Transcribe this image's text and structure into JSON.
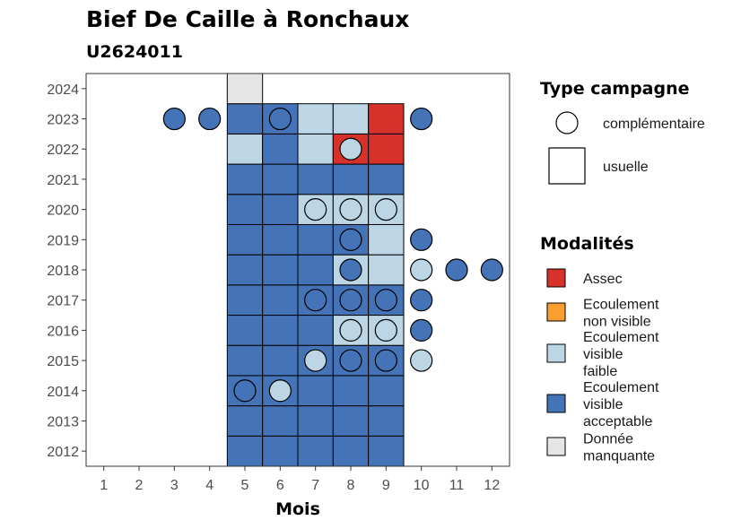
{
  "chart_data": {
    "type": "heatmap",
    "title": "Bief De Caille à Ronchaux",
    "subtitle": "U2624011",
    "xlabel": "Mois",
    "ylabel": "",
    "x_ticks": [
      "1",
      "2",
      "3",
      "4",
      "5",
      "6",
      "7",
      "8",
      "9",
      "10",
      "11",
      "12"
    ],
    "y_ticks": [
      "2012",
      "2013",
      "2014",
      "2015",
      "2016",
      "2017",
      "2018",
      "2019",
      "2020",
      "2021",
      "2022",
      "2023",
      "2024"
    ],
    "xlim": [
      0.5,
      12.5
    ],
    "ylim": [
      2011.5,
      2024.5
    ],
    "grid": false,
    "legend_placement": "right",
    "legend_type": {
      "title": "Type campagne",
      "items": [
        {
          "label": "complémentaire",
          "shape": "circle"
        },
        {
          "label": "usuelle",
          "shape": "square"
        }
      ]
    },
    "legend_modalites": {
      "title": "Modalités",
      "items": [
        {
          "key": "assec",
          "label_lines": [
            "Assec"
          ],
          "color": "#D7312C"
        },
        {
          "key": "nonvisible",
          "label_lines": [
            "Ecoulement",
            "non visible"
          ],
          "color": "#FA9E2F"
        },
        {
          "key": "faible",
          "label_lines": [
            "Ecoulement",
            "visible",
            "faible"
          ],
          "color": "#BCD6E6"
        },
        {
          "key": "acceptable",
          "label_lines": [
            "Ecoulement",
            "visible",
            "acceptable"
          ],
          "color": "#4474B7"
        },
        {
          "key": "manquante",
          "label_lines": [
            "Donnée",
            "manquante"
          ],
          "color": "#E5E5E5"
        }
      ]
    },
    "squares": [
      {
        "year": 2012,
        "month": 5,
        "mod": "acceptable"
      },
      {
        "year": 2012,
        "month": 6,
        "mod": "acceptable"
      },
      {
        "year": 2012,
        "month": 7,
        "mod": "acceptable"
      },
      {
        "year": 2012,
        "month": 8,
        "mod": "acceptable"
      },
      {
        "year": 2012,
        "month": 9,
        "mod": "acceptable"
      },
      {
        "year": 2013,
        "month": 5,
        "mod": "acceptable"
      },
      {
        "year": 2013,
        "month": 6,
        "mod": "acceptable"
      },
      {
        "year": 2013,
        "month": 7,
        "mod": "acceptable"
      },
      {
        "year": 2013,
        "month": 8,
        "mod": "acceptable"
      },
      {
        "year": 2013,
        "month": 9,
        "mod": "acceptable"
      },
      {
        "year": 2014,
        "month": 5,
        "mod": "acceptable"
      },
      {
        "year": 2014,
        "month": 6,
        "mod": "acceptable"
      },
      {
        "year": 2014,
        "month": 7,
        "mod": "acceptable"
      },
      {
        "year": 2014,
        "month": 8,
        "mod": "acceptable"
      },
      {
        "year": 2014,
        "month": 9,
        "mod": "acceptable"
      },
      {
        "year": 2015,
        "month": 5,
        "mod": "acceptable"
      },
      {
        "year": 2015,
        "month": 6,
        "mod": "acceptable"
      },
      {
        "year": 2015,
        "month": 7,
        "mod": "acceptable"
      },
      {
        "year": 2015,
        "month": 8,
        "mod": "acceptable"
      },
      {
        "year": 2015,
        "month": 9,
        "mod": "acceptable"
      },
      {
        "year": 2016,
        "month": 5,
        "mod": "acceptable"
      },
      {
        "year": 2016,
        "month": 6,
        "mod": "acceptable"
      },
      {
        "year": 2016,
        "month": 7,
        "mod": "acceptable"
      },
      {
        "year": 2016,
        "month": 8,
        "mod": "faible"
      },
      {
        "year": 2016,
        "month": 9,
        "mod": "faible"
      },
      {
        "year": 2017,
        "month": 5,
        "mod": "acceptable"
      },
      {
        "year": 2017,
        "month": 6,
        "mod": "acceptable"
      },
      {
        "year": 2017,
        "month": 7,
        "mod": "acceptable"
      },
      {
        "year": 2017,
        "month": 8,
        "mod": "acceptable"
      },
      {
        "year": 2017,
        "month": 9,
        "mod": "acceptable"
      },
      {
        "year": 2018,
        "month": 5,
        "mod": "acceptable"
      },
      {
        "year": 2018,
        "month": 6,
        "mod": "acceptable"
      },
      {
        "year": 2018,
        "month": 7,
        "mod": "acceptable"
      },
      {
        "year": 2018,
        "month": 8,
        "mod": "faible"
      },
      {
        "year": 2018,
        "month": 9,
        "mod": "faible"
      },
      {
        "year": 2019,
        "month": 5,
        "mod": "acceptable"
      },
      {
        "year": 2019,
        "month": 6,
        "mod": "acceptable"
      },
      {
        "year": 2019,
        "month": 7,
        "mod": "acceptable"
      },
      {
        "year": 2019,
        "month": 8,
        "mod": "acceptable"
      },
      {
        "year": 2019,
        "month": 9,
        "mod": "faible"
      },
      {
        "year": 2020,
        "month": 5,
        "mod": "acceptable"
      },
      {
        "year": 2020,
        "month": 6,
        "mod": "acceptable"
      },
      {
        "year": 2020,
        "month": 7,
        "mod": "faible"
      },
      {
        "year": 2020,
        "month": 8,
        "mod": "faible"
      },
      {
        "year": 2020,
        "month": 9,
        "mod": "faible"
      },
      {
        "year": 2021,
        "month": 5,
        "mod": "acceptable"
      },
      {
        "year": 2021,
        "month": 6,
        "mod": "acceptable"
      },
      {
        "year": 2021,
        "month": 7,
        "mod": "acceptable"
      },
      {
        "year": 2021,
        "month": 8,
        "mod": "acceptable"
      },
      {
        "year": 2021,
        "month": 9,
        "mod": "acceptable"
      },
      {
        "year": 2022,
        "month": 5,
        "mod": "faible"
      },
      {
        "year": 2022,
        "month": 6,
        "mod": "acceptable"
      },
      {
        "year": 2022,
        "month": 7,
        "mod": "faible"
      },
      {
        "year": 2022,
        "month": 8,
        "mod": "assec"
      },
      {
        "year": 2022,
        "month": 9,
        "mod": "assec"
      },
      {
        "year": 2023,
        "month": 5,
        "mod": "acceptable"
      },
      {
        "year": 2023,
        "month": 6,
        "mod": "acceptable"
      },
      {
        "year": 2023,
        "month": 7,
        "mod": "faible"
      },
      {
        "year": 2023,
        "month": 8,
        "mod": "faible"
      },
      {
        "year": 2023,
        "month": 9,
        "mod": "assec"
      },
      {
        "year": 2024,
        "month": 5,
        "mod": "manquante"
      }
    ],
    "circles": [
      {
        "year": 2014,
        "month": 5,
        "mod": "acceptable"
      },
      {
        "year": 2014,
        "month": 6,
        "mod": "faible"
      },
      {
        "year": 2015,
        "month": 7,
        "mod": "faible"
      },
      {
        "year": 2015,
        "month": 8,
        "mod": "acceptable"
      },
      {
        "year": 2015,
        "month": 9,
        "mod": "acceptable"
      },
      {
        "year": 2015,
        "month": 10,
        "mod": "faible"
      },
      {
        "year": 2016,
        "month": 8,
        "mod": "faible"
      },
      {
        "year": 2016,
        "month": 9,
        "mod": "faible"
      },
      {
        "year": 2016,
        "month": 10,
        "mod": "acceptable"
      },
      {
        "year": 2017,
        "month": 7,
        "mod": "acceptable"
      },
      {
        "year": 2017,
        "month": 8,
        "mod": "acceptable"
      },
      {
        "year": 2017,
        "month": 9,
        "mod": "acceptable"
      },
      {
        "year": 2017,
        "month": 10,
        "mod": "acceptable"
      },
      {
        "year": 2018,
        "month": 8,
        "mod": "acceptable"
      },
      {
        "year": 2018,
        "month": 10,
        "mod": "faible"
      },
      {
        "year": 2018,
        "month": 11,
        "mod": "acceptable"
      },
      {
        "year": 2018,
        "month": 12,
        "mod": "acceptable"
      },
      {
        "year": 2019,
        "month": 8,
        "mod": "acceptable"
      },
      {
        "year": 2019,
        "month": 10,
        "mod": "acceptable"
      },
      {
        "year": 2020,
        "month": 7,
        "mod": "faible"
      },
      {
        "year": 2020,
        "month": 8,
        "mod": "faible"
      },
      {
        "year": 2020,
        "month": 9,
        "mod": "faible"
      },
      {
        "year": 2022,
        "month": 8,
        "mod": "faible"
      },
      {
        "year": 2023,
        "month": 3,
        "mod": "acceptable"
      },
      {
        "year": 2023,
        "month": 4,
        "mod": "acceptable"
      },
      {
        "year": 2023,
        "month": 6,
        "mod": "acceptable"
      },
      {
        "year": 2023,
        "month": 10,
        "mod": "acceptable"
      }
    ]
  }
}
